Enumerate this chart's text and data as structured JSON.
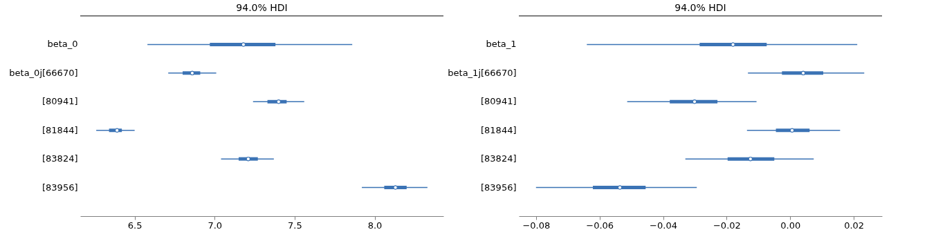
{
  "chart_data": [
    {
      "type": "box",
      "title": "94.0% HDI",
      "orientation": "horizontal",
      "grid": false,
      "categories": [
        "beta_0",
        "beta_0j[66670]",
        "[80941]",
        "[81844]",
        "[83824]",
        "[83956]"
      ],
      "series": [
        {
          "color": "#3b73b5",
          "boxes": [
            {
              "low": 6.58,
              "q1": 6.97,
              "median": 7.18,
              "q3": 7.38,
              "high": 7.86
            },
            {
              "low": 6.71,
              "q1": 6.8,
              "median": 6.86,
              "q3": 6.91,
              "high": 7.01
            },
            {
              "low": 7.24,
              "q1": 7.33,
              "median": 7.4,
              "q3": 7.45,
              "high": 7.56
            },
            {
              "low": 6.26,
              "q1": 6.34,
              "median": 6.39,
              "q3": 6.42,
              "high": 6.5
            },
            {
              "low": 7.04,
              "q1": 7.15,
              "median": 7.21,
              "q3": 7.27,
              "high": 7.37
            },
            {
              "low": 7.92,
              "q1": 8.06,
              "median": 8.13,
              "q3": 8.2,
              "high": 8.33
            }
          ]
        }
      ],
      "xlim": [
        6.16,
        8.43
      ],
      "xticks": [
        6.5,
        {
          "value": 7,
          "label": "7.0"
        },
        7.5,
        {
          "value": 8,
          "label": "8.0"
        }
      ]
    },
    {
      "type": "box",
      "title": "94.0% HDI",
      "orientation": "horizontal",
      "grid": false,
      "categories": [
        "beta_1",
        "beta_1j[66670]",
        "[80941]",
        "[81844]",
        "[83824]",
        "[83956]"
      ],
      "series": [
        {
          "color": "#3b73b5",
          "boxes": [
            {
              "low": -0.064,
              "q1": -0.0285,
              "median": -0.018,
              "q3": -0.0074,
              "high": 0.0211
            },
            {
              "low": -0.0133,
              "q1": -0.0026,
              "median": 0.0041,
              "q3": 0.0104,
              "high": 0.0233
            },
            {
              "low": -0.0513,
              "q1": -0.0379,
              "median": -0.0301,
              "q3": -0.0229,
              "high": -0.0106
            },
            {
              "low": -0.0136,
              "q1": -0.0045,
              "median": 0.0006,
              "q3": 0.0061,
              "high": 0.0157
            },
            {
              "low": -0.033,
              "q1": -0.0197,
              "median": -0.0125,
              "q3": -0.005,
              "high": 0.0074
            },
            {
              "low": -0.08,
              "q1": -0.0621,
              "median": -0.0536,
              "q3": -0.0455,
              "high": -0.0294
            }
          ]
        }
      ],
      "xlim": [
        -0.0854,
        0.0289
      ],
      "xticks": [
        {
          "value": -0.08,
          "label": "−0.08"
        },
        {
          "value": -0.06,
          "label": "−0.06"
        },
        {
          "value": -0.04,
          "label": "−0.04"
        },
        {
          "value": -0.02,
          "label": "−0.02"
        },
        {
          "value": 0,
          "label": "0.00"
        },
        0.02
      ]
    }
  ]
}
